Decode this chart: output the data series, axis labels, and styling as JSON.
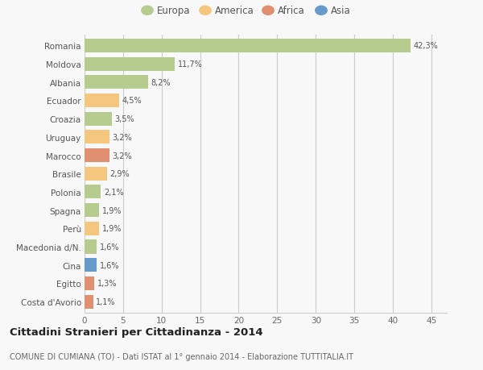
{
  "categories": [
    "Romania",
    "Moldova",
    "Albania",
    "Ecuador",
    "Croazia",
    "Uruguay",
    "Marocco",
    "Brasile",
    "Polonia",
    "Spagna",
    "Perù",
    "Macedonia d/N.",
    "Cina",
    "Egitto",
    "Costa d'Avorio"
  ],
  "values": [
    42.3,
    11.7,
    8.2,
    4.5,
    3.5,
    3.2,
    3.2,
    2.9,
    2.1,
    1.9,
    1.9,
    1.6,
    1.6,
    1.3,
    1.1
  ],
  "labels": [
    "42,3%",
    "11,7%",
    "8,2%",
    "4,5%",
    "3,5%",
    "3,2%",
    "3,2%",
    "2,9%",
    "2,1%",
    "1,9%",
    "1,9%",
    "1,6%",
    "1,6%",
    "1,3%",
    "1,1%"
  ],
  "continents": [
    "Europa",
    "Europa",
    "Europa",
    "America",
    "Europa",
    "America",
    "Africa",
    "America",
    "Europa",
    "Europa",
    "America",
    "Europa",
    "Asia",
    "Africa",
    "Africa"
  ],
  "continent_colors": {
    "Europa": "#b5cc8e",
    "America": "#f5c77e",
    "Africa": "#e09070",
    "Asia": "#6699cc"
  },
  "legend_entries": [
    "Europa",
    "America",
    "Africa",
    "Asia"
  ],
  "legend_colors": [
    "#b5cc8e",
    "#f5c77e",
    "#e09070",
    "#6699cc"
  ],
  "xlim": [
    0,
    47
  ],
  "xticks": [
    0,
    5,
    10,
    15,
    20,
    25,
    30,
    35,
    40,
    45
  ],
  "title": "Cittadini Stranieri per Cittadinanza - 2014",
  "subtitle": "COMUNE DI CUMIANA (TO) - Dati ISTAT al 1° gennaio 2014 - Elaborazione TUTTITALIA.IT",
  "background_color": "#f8f8f8",
  "grid_color": "#cccccc",
  "bar_height": 0.75
}
